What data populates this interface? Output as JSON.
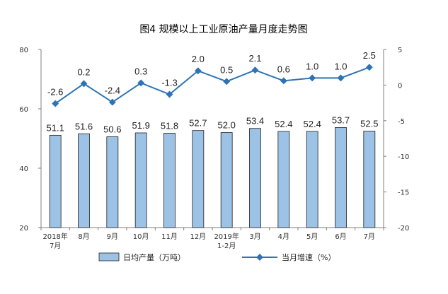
{
  "title": "图4  规模以上工业原油产量月度走势图",
  "chart_data": {
    "type": "bar",
    "categories": [
      {
        "line1": "2018年",
        "line2": "7月"
      },
      {
        "line1": "8月",
        "line2": ""
      },
      {
        "line1": "9月",
        "line2": ""
      },
      {
        "line1": "10月",
        "line2": ""
      },
      {
        "line1": "11月",
        "line2": ""
      },
      {
        "line1": "12月",
        "line2": ""
      },
      {
        "line1": "2019年",
        "line2": "1-2月"
      },
      {
        "line1": "3月",
        "line2": ""
      },
      {
        "line1": "4月",
        "line2": ""
      },
      {
        "line1": "5月",
        "line2": ""
      },
      {
        "line1": "6月",
        "line2": ""
      },
      {
        "line1": "7月",
        "line2": ""
      }
    ],
    "series": [
      {
        "name": "日均产量（万吨）",
        "type": "bar",
        "axis": "left",
        "values": [
          51.1,
          51.6,
          50.6,
          51.9,
          51.8,
          52.7,
          52.0,
          53.4,
          52.4,
          52.4,
          53.7,
          52.5
        ],
        "labels": [
          "51.1",
          "51.6",
          "50.6",
          "51.9",
          "51.8",
          "52.7",
          "52.0",
          "53.4",
          "52.4",
          "52.4",
          "53.7",
          "52.5"
        ],
        "color": "#9cc3e6",
        "stroke": "#1f1f1f"
      },
      {
        "name": "当月增速（%）",
        "type": "line",
        "axis": "right",
        "values": [
          -2.6,
          0.2,
          -2.4,
          0.3,
          -1.3,
          2.0,
          0.5,
          2.1,
          0.6,
          1.0,
          1.0,
          2.5
        ],
        "labels": [
          "-2.6",
          "0.2",
          "-2.4",
          "0.3",
          "-1.3",
          "2.0",
          "0.5",
          "2.1",
          "0.6",
          "1.0",
          "1.0",
          "2.5"
        ],
        "color": "#2e74b5"
      }
    ],
    "left_axis": {
      "min": 20,
      "max": 80,
      "ticks": [
        20,
        40,
        60,
        80
      ],
      "tick_labels": [
        "20",
        "40",
        "60",
        "80"
      ]
    },
    "right_axis": {
      "min": -20,
      "max": 5,
      "ticks": [
        -20,
        -15,
        -10,
        -5,
        0,
        5
      ],
      "tick_labels": [
        "-20",
        "-15",
        "-10",
        "-5",
        "0",
        "5"
      ]
    },
    "grid": false,
    "legend_position": "bottom"
  }
}
